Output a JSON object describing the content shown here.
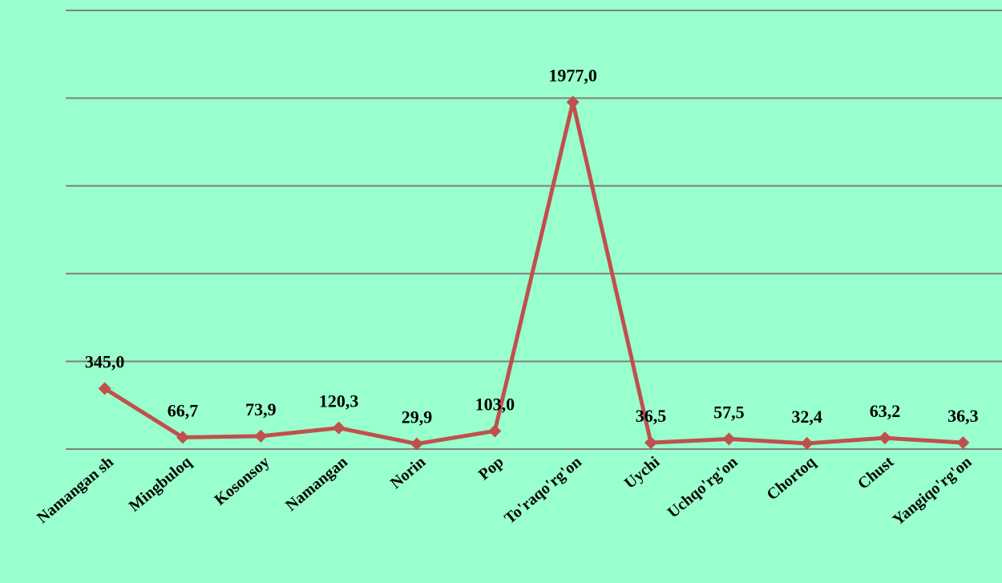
{
  "chart_data": {
    "type": "line",
    "title": "",
    "xlabel": "",
    "ylabel": "",
    "categories": [
      "Namangan sh",
      "Mingbuloq",
      "Kosonsoy",
      "Namangan",
      "Norin",
      "Pop",
      "To'raqo'rg'on",
      "Uychi",
      "Uchqo'rg'on",
      "Chortoq",
      "Chust",
      "Yangiqo'rg'on"
    ],
    "values": [
      345.0,
      66.7,
      73.9,
      120.3,
      29.9,
      103.0,
      1977.0,
      36.5,
      57.5,
      32.4,
      63.2,
      36.3
    ],
    "value_labels": [
      "345,0",
      "66,7",
      "73,9",
      "120,3",
      "29,9",
      "103,0",
      "1977,0",
      "36,5",
      "57,5",
      "32,4",
      "63,2",
      "36,3"
    ],
    "ylim": [
      0,
      2500
    ],
    "y_gridlines": [
      0,
      500,
      1000,
      1500,
      2000,
      2500
    ],
    "y_tick_labels_shown": false,
    "grid": true,
    "legend": "none",
    "colors": {
      "background": "#99ffcc",
      "line": "#c0504d",
      "marker": "#c0504d",
      "gridline": "#808080",
      "text": "#000000"
    }
  }
}
